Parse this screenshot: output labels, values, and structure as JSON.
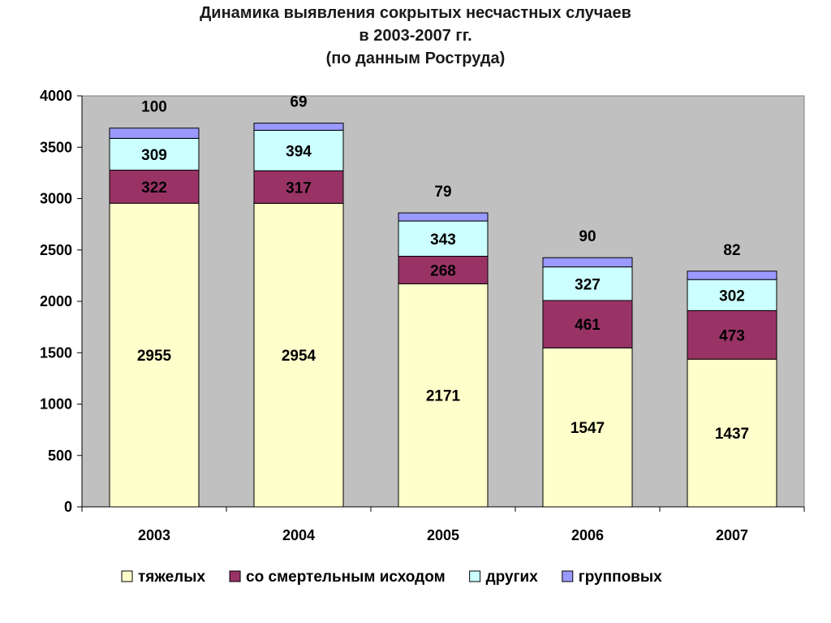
{
  "chart_data": {
    "type": "bar",
    "stacked": true,
    "title_lines": [
      "Динамика выявления сокрытых несчастных случаев",
      "в 2003-2007 гг.",
      "(по данным Роструда)"
    ],
    "categories": [
      "2003",
      "2004",
      "2005",
      "2006",
      "2007"
    ],
    "series": [
      {
        "name": "тяжелых",
        "color": "#ffffcc",
        "values": [
          2955,
          2954,
          2171,
          1547,
          1437
        ],
        "labels": [
          "2955",
          "2954",
          "2171",
          "1547",
          "1437"
        ]
      },
      {
        "name": "со смертельным исходом",
        "color": "#993366",
        "values": [
          322,
          317,
          268,
          461,
          473
        ],
        "labels": [
          "322",
          "317",
          "268",
          "461",
          "473"
        ]
      },
      {
        "name": "других",
        "color": "#ccffff",
        "values": [
          309,
          394,
          343,
          327,
          302
        ],
        "labels": [
          "309",
          "394",
          "343",
          "327",
          "302"
        ]
      },
      {
        "name": "групповых",
        "color": "#9999ff",
        "values": [
          100,
          69,
          79,
          90,
          82
        ],
        "labels": [
          "100",
          "69",
          "79",
          "90",
          "82"
        ]
      }
    ],
    "ylim": [
      0,
      4000
    ],
    "yticks": [
      "0",
      "500",
      "1000",
      "1500",
      "2000",
      "2500",
      "3000",
      "3500",
      "4000"
    ],
    "plot_background": "#c0c0c0",
    "grid": false,
    "legend_position": "bottom"
  }
}
